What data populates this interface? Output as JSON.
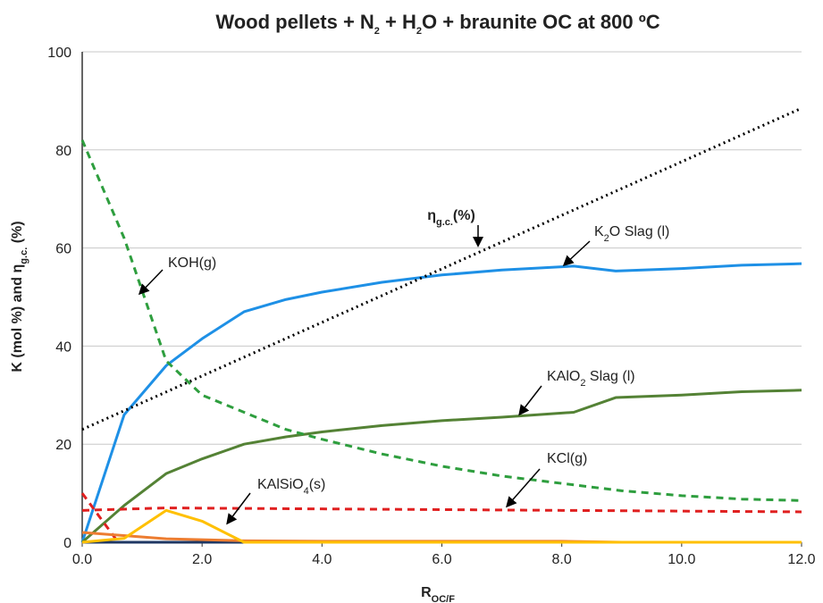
{
  "chart_data": {
    "type": "line",
    "title": [
      "Wood pellets + N",
      "2",
      " + H",
      "2",
      "O + braunite OC at 800 ºC"
    ],
    "xlabel": [
      "R",
      "OC/F"
    ],
    "ylabel": [
      "K (mol %) and η",
      "g.c.",
      " (%)"
    ],
    "xlim": [
      0,
      12
    ],
    "ylim": [
      0,
      100
    ],
    "xticks": [
      {
        "value": 0,
        "label": "0.0"
      },
      {
        "value": 2,
        "label": "2.0"
      },
      {
        "value": 4,
        "label": "4.0"
      },
      {
        "value": 6,
        "label": "6.0"
      },
      {
        "value": 8,
        "label": "8.0"
      },
      {
        "value": 10,
        "label": "10.0"
      },
      {
        "value": 12,
        "label": "12.0"
      }
    ],
    "yticks": [
      0,
      20,
      40,
      60,
      80,
      100
    ],
    "grid": true,
    "series": [
      {
        "name": "K2O Slag (l)",
        "color": "#1e90e6",
        "dash": "solid",
        "x": [
          0,
          0.7,
          1.4,
          2.0,
          2.7,
          3.4,
          4.0,
          5,
          6,
          7,
          8.2,
          8.9,
          10,
          11,
          12
        ],
        "values": [
          0,
          26,
          36,
          41.5,
          47,
          49.5,
          51,
          53,
          54.5,
          55.5,
          56.3,
          55.3,
          55.8,
          56.5,
          56.8
        ]
      },
      {
        "name": "KAlO2 Slag (l)",
        "color": "#548235",
        "dash": "solid",
        "x": [
          0,
          0.7,
          1.4,
          2.0,
          2.7,
          3.4,
          4.0,
          5,
          6,
          7,
          8.2,
          8.9,
          10,
          11,
          12
        ],
        "values": [
          0,
          7.5,
          14,
          17,
          20,
          21.5,
          22.5,
          23.8,
          24.8,
          25.5,
          26.5,
          29.5,
          30,
          30.7,
          31
        ]
      },
      {
        "name": "KOH(g)",
        "color": "#2e9e3e",
        "dash": "dashed",
        "x": [
          0,
          0.7,
          1.4,
          2.0,
          2.7,
          3.4,
          4.0,
          5,
          6,
          7,
          8,
          9,
          10,
          11,
          12
        ],
        "values": [
          82,
          62,
          37,
          30,
          26.5,
          23,
          21,
          18,
          15.5,
          13.5,
          12,
          10.5,
          9.5,
          8.8,
          8.5
        ]
      },
      {
        "name": "KCl(g)",
        "color": "#e02020",
        "dash": "dashed",
        "x": [
          0,
          1.4,
          4.0,
          8,
          12
        ],
        "values": [
          6.5,
          7,
          6.8,
          6.5,
          6.2
        ]
      },
      {
        "color": "#e02020",
        "dash": "dashed",
        "x": [
          0,
          0.6
        ],
        "values": [
          10,
          0
        ]
      },
      {
        "color": "#1f3864",
        "dash": "solid",
        "x": [
          0,
          2.7
        ],
        "values": [
          0,
          0
        ]
      },
      {
        "color": "#ed7d31",
        "dash": "solid",
        "x": [
          0,
          1.4,
          2.7,
          4.0,
          8,
          9,
          12
        ],
        "values": [
          2,
          0.7,
          0.3,
          0.2,
          0.2,
          0,
          0
        ]
      },
      {
        "name": "KAlSiO4(s)",
        "color": "#ffc000",
        "dash": "solid",
        "x": [
          0,
          0.7,
          1.4,
          2.0,
          2.7,
          12
        ],
        "values": [
          0,
          0.8,
          6.5,
          4.3,
          0,
          0
        ]
      },
      {
        "name": "ηg.c.(%)",
        "color": "#000000",
        "dash": "dotted",
        "x": [
          0,
          12
        ],
        "values": [
          23,
          88.5
        ]
      }
    ],
    "annotations": [
      [
        "η",
        "g.c.",
        "(%)"
      ],
      [
        "K",
        "2",
        "O Slag (l)"
      ],
      [
        "KOH(g)"
      ],
      [
        "KAlO",
        "2",
        " Slag (l)"
      ],
      [
        "KCl(g)"
      ],
      [
        "KAlSiO",
        "4",
        "(s)"
      ]
    ]
  }
}
